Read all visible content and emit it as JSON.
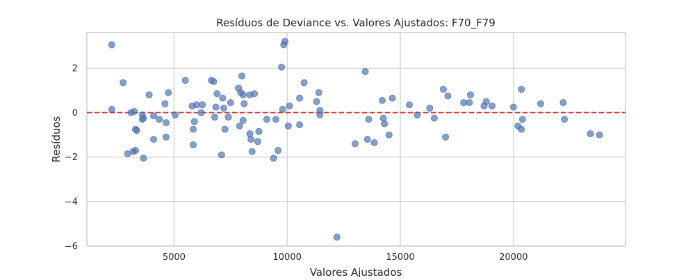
{
  "chart_data": {
    "type": "scatter",
    "title": "Resíduos de Deviance vs. Valores Ajustados: F70_F79",
    "xlabel": "Valores Ajustados",
    "ylabel": "Resíduos",
    "xlim": [
      1150,
      24950
    ],
    "ylim": [
      -6.0,
      3.6
    ],
    "xticks": [
      5000,
      10000,
      15000,
      20000
    ],
    "xtick_labels": [
      "5000",
      "10000",
      "15000",
      "20000"
    ],
    "yticks": [
      2,
      0,
      -2,
      -4,
      -6
    ],
    "ytick_labels": [
      "2",
      "0",
      "−2",
      "−4",
      "−6"
    ],
    "grid": true,
    "reference_line": {
      "y": 0,
      "style": "dashed",
      "color": "#d62728"
    },
    "point_color": "#4c72b0",
    "series": [
      {
        "x": [
          2250,
          2250,
          2750,
          2950,
          3100,
          3200,
          3250,
          3300,
          3300,
          3350,
          3600,
          3600,
          3650,
          3650,
          3900,
          4100,
          4100,
          4350,
          4600,
          4650,
          4650,
          4750,
          5050,
          5500,
          5800,
          5850,
          5850,
          5900,
          6000,
          6200,
          6250,
          6650,
          6750,
          6800,
          6850,
          6900,
          7100,
          7150,
          7200,
          7250,
          7400,
          7500,
          7850,
          7900,
          7950,
          8000,
          8050,
          8050,
          8100,
          8350,
          8350,
          8400,
          8450,
          8550,
          8700,
          8750,
          9100,
          9400,
          9500,
          9600,
          9750,
          9800,
          9850,
          9900,
          10050,
          10100,
          10550,
          10550,
          10750,
          11300,
          11400,
          11450,
          11450,
          12200,
          13000,
          13450,
          13550,
          13600,
          13850,
          14200,
          14250,
          14300,
          14500,
          14650,
          15400,
          15750,
          16300,
          16500,
          16900,
          17000,
          17100,
          17800,
          18050,
          18100,
          18700,
          18800,
          19050,
          20000,
          20200,
          20350,
          20350,
          20400,
          21200,
          22200,
          22250,
          23400,
          23800
        ],
        "y": [
          3.05,
          0.15,
          1.35,
          -1.85,
          0.0,
          -1.75,
          0.05,
          -0.75,
          -1.7,
          -0.8,
          -0.1,
          -0.3,
          -0.25,
          -2.05,
          0.8,
          -0.15,
          -1.2,
          -0.3,
          0.4,
          -0.45,
          -1.1,
          0.9,
          -0.1,
          1.45,
          0.3,
          -0.75,
          -1.45,
          -0.4,
          0.35,
          0.0,
          0.35,
          1.45,
          1.4,
          -0.2,
          0.25,
          0.85,
          -1.9,
          0.65,
          0.2,
          -0.75,
          -0.2,
          0.45,
          1.1,
          -0.6,
          0.9,
          1.65,
          0.8,
          -0.35,
          0.4,
          0.8,
          -0.95,
          -1.2,
          -1.75,
          0.85,
          -1.3,
          -0.85,
          -0.3,
          -2.05,
          -0.3,
          -1.7,
          2.05,
          0.15,
          3.05,
          3.2,
          -0.6,
          0.3,
          0.65,
          -0.55,
          1.35,
          0.5,
          0.9,
          0.1,
          -0.1,
          -5.6,
          -1.4,
          1.85,
          -1.2,
          -0.3,
          -1.35,
          0.55,
          -0.25,
          -0.5,
          -1.0,
          0.65,
          0.35,
          -0.1,
          0.2,
          -0.25,
          1.05,
          -1.1,
          0.75,
          0.45,
          0.45,
          0.8,
          0.3,
          0.5,
          0.3,
          0.25,
          -0.6,
          1.05,
          -0.75,
          -0.3,
          0.4,
          0.45,
          -0.3,
          -0.95,
          -1.0
        ]
      }
    ]
  }
}
